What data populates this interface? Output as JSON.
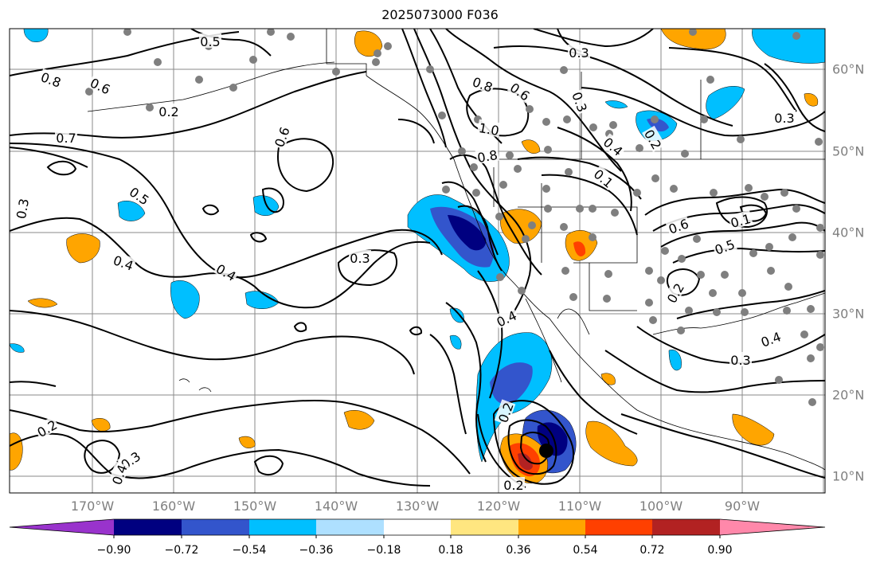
{
  "title": "2025073000 F036",
  "lon_labels": [
    "170°W",
    "160°W",
    "150°W",
    "140°W",
    "130°W",
    "120°W",
    "110°W",
    "100°W",
    "90°W"
  ],
  "lat_labels": [
    "60°N",
    "50°N",
    "40°N",
    "30°N",
    "20°N",
    "10°N"
  ],
  "contour_labels": [
    "0.5",
    "0.8",
    "0.6",
    "0.7",
    "0.3",
    "0.5",
    "0.4",
    "0.4",
    "0.6",
    "0.3",
    "0.2",
    "0.3",
    "0.4",
    "0.3",
    "0.8",
    "0.6",
    "1.0",
    "0.8",
    "0.3",
    "0.4",
    "0.1",
    "0.2",
    "0.6",
    "0.5",
    "0.1",
    "0.2",
    "0.3",
    "0.4",
    "0.3",
    "0.2",
    "0.2",
    "0.4",
    "0.2"
  ],
  "colorbar": {
    "ticks": [
      "−0.90",
      "−0.72",
      "−0.54",
      "−0.36",
      "−0.18",
      "0.18",
      "0.36",
      "0.54",
      "0.72",
      "0.90"
    ],
    "colors": [
      "#9933cc",
      "#000080",
      "#3355cc",
      "#00bfff",
      "#aee0ff",
      "#ffffff",
      "#ffe680",
      "#ffa500",
      "#ff4000",
      "#b22222",
      "#ff88aa"
    ]
  }
}
